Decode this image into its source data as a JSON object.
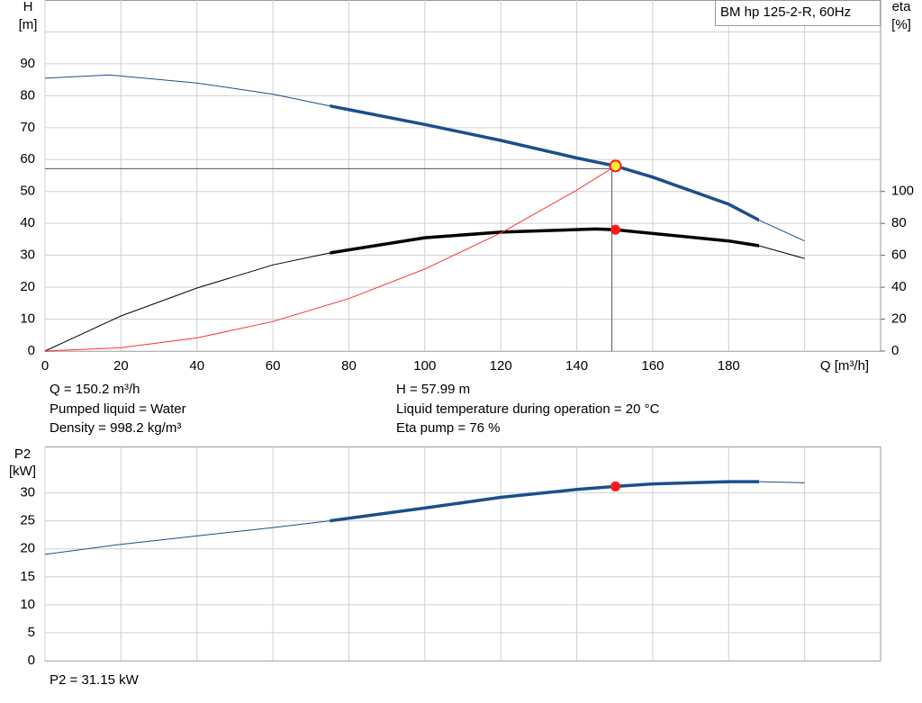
{
  "chart_data": [
    {
      "type": "line",
      "title": "BM hp 125-2-R, 60Hz",
      "xlabel": "Q [m³/h]",
      "ylabel": "H",
      "yunit": "[m]",
      "y2label": "eta",
      "y2unit": "[%]",
      "xlim": [
        0,
        220
      ],
      "ylim": [
        0,
        110
      ],
      "y2lim": [
        0,
        220
      ],
      "xticks": [
        0,
        20,
        40,
        60,
        80,
        100,
        120,
        140,
        160,
        180,
        {
          "value": 200,
          "label": null
        }
      ],
      "yticks": [
        0,
        10,
        20,
        30,
        40,
        50,
        60,
        70,
        80,
        90,
        {
          "value": 100,
          "label": null
        }
      ],
      "y2ticks": [
        0,
        20,
        40,
        60,
        80,
        100
      ],
      "grid": true,
      "series": [
        {
          "color": "#1b4f8c",
          "axis": "y",
          "bold_xrange": [
            75,
            188
          ],
          "x": [
            0,
            17,
            40,
            60,
            75,
            100,
            120,
            140,
            150.2,
            160,
            180,
            188,
            200
          ],
          "values": [
            85.5,
            86.5,
            84,
            80.5,
            76.8,
            71,
            66,
            60.5,
            57.99,
            54.5,
            46,
            41,
            34.5
          ]
        },
        {
          "color": "#000000",
          "axis": "y2",
          "bold_xrange": [
            75,
            188
          ],
          "x": [
            0,
            20,
            40,
            60,
            75,
            100,
            120,
            145,
            150.2,
            180,
            188,
            200
          ],
          "values": [
            0,
            22,
            39.5,
            54,
            61.5,
            71,
            74.5,
            76.5,
            76,
            69,
            66,
            58
          ]
        },
        {
          "color": "#ff3030",
          "axis": "y",
          "x": [
            0,
            20,
            40,
            60,
            80,
            100,
            120,
            140,
            150.2
          ],
          "values": [
            0,
            1.03,
            4.11,
            9.26,
            16.45,
            25.7,
            37.0,
            50.4,
            57.99
          ]
        }
      ],
      "operating_point": {
        "x": 150.2,
        "y": 57.99,
        "y2": 76
      },
      "annotations": [
        "Q = 150.2 m³/h",
        "Pumped liquid = Water",
        "Density = 998.2 kg/m³",
        "H = 57.99 m",
        "Liquid temperature during operation = 20 °C",
        "Eta pump = 76 %"
      ]
    },
    {
      "type": "line",
      "ylabel": "P2",
      "yunit": "[kW]",
      "xlim": [
        0,
        220
      ],
      "ylim": [
        0,
        38.3
      ],
      "xticks": [
        {
          "value": 0,
          "label": null
        },
        {
          "value": 20,
          "label": null
        },
        {
          "value": 40,
          "label": null
        },
        {
          "value": 60,
          "label": null
        },
        {
          "value": 80,
          "label": null
        },
        {
          "value": 100,
          "label": null
        },
        {
          "value": 120,
          "label": null
        },
        {
          "value": 140,
          "label": null
        },
        {
          "value": 160,
          "label": null
        },
        {
          "value": 180,
          "label": null
        },
        {
          "value": 200,
          "label": null
        }
      ],
      "yticks": [
        0,
        5,
        10,
        15,
        20,
        25,
        30
      ],
      "grid": true,
      "series": [
        {
          "color": "#1b4f8c",
          "axis": "y",
          "bold_xrange": [
            75,
            188
          ],
          "x": [
            0,
            20,
            40,
            60,
            75,
            100,
            120,
            140,
            150.2,
            160,
            180,
            188,
            200
          ],
          "values": [
            19,
            20.8,
            22.3,
            23.8,
            25,
            27.3,
            29.2,
            30.6,
            31.15,
            31.6,
            32,
            32,
            31.8
          ]
        }
      ],
      "operating_point": {
        "x": 150.2,
        "y": 31.15
      },
      "annotations": [
        "P2 = 31.15 kW"
      ]
    }
  ]
}
